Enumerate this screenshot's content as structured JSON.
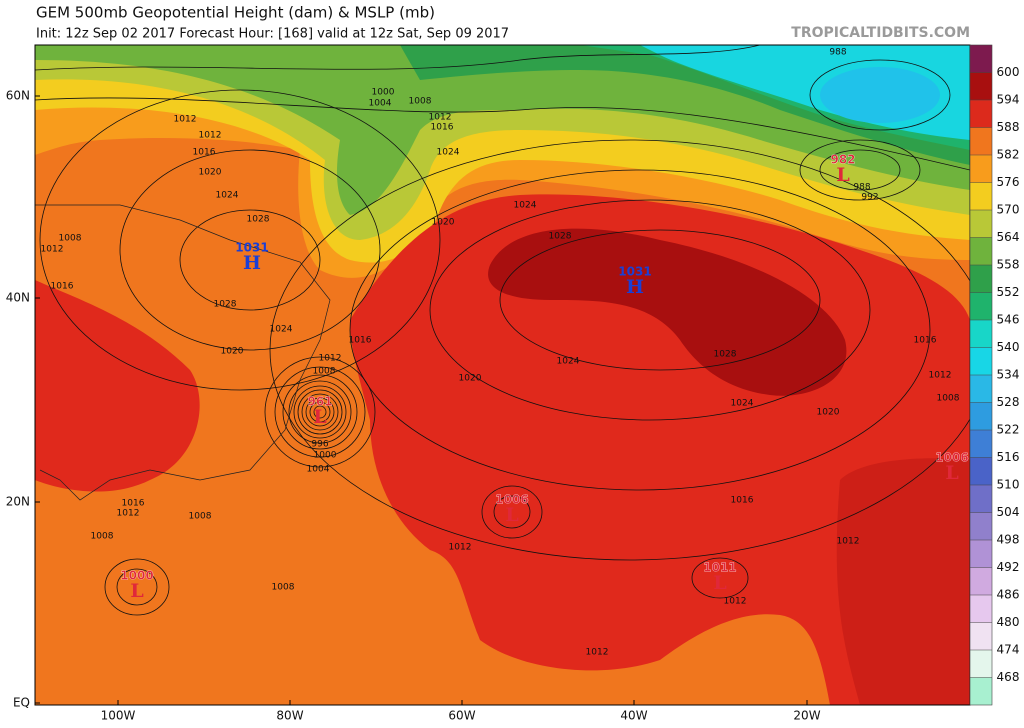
{
  "header": {
    "title": "GEM 500mb Geopotential Height (dam) & MSLP (mb)",
    "subtitle": "Init: 12z Sep 02 2017   Forecast Hour: [168]   valid at 12z Sat, Sep 09 2017",
    "brand": "TROPICALTIDBITS.COM"
  },
  "map": {
    "lat_labels": [
      "60N",
      "40N",
      "20N",
      "EQ"
    ],
    "lon_labels": [
      "100W",
      "80W",
      "60W",
      "40W",
      "20W"
    ],
    "centers": [
      {
        "letter": "H",
        "value": 1031
      },
      {
        "letter": "H",
        "value": 1031
      },
      {
        "letter": "L",
        "value": 982
      },
      {
        "letter": "L",
        "value": 961
      },
      {
        "letter": "L",
        "value": 1006
      },
      {
        "letter": "L",
        "value": 1011
      },
      {
        "letter": "L",
        "value": 1000
      },
      {
        "letter": "L",
        "value": 1006
      }
    ],
    "isobar_labels": [
      988,
      1000,
      1004,
      1008,
      1012,
      1016,
      1012,
      1012,
      1016,
      1020,
      1024,
      1028,
      1008,
      1012,
      1016,
      1028,
      1024,
      1020,
      1012,
      1008,
      1016,
      1024,
      1020,
      1024,
      1028,
      1024,
      1020,
      1028,
      1024,
      1020,
      1016,
      1016,
      1012,
      1008,
      996,
      1000,
      1004,
      1016,
      1012,
      1008,
      1008,
      1012,
      1008,
      1012,
      1012,
      988,
      992,
      1012
    ]
  },
  "colorbar": {
    "ticks": [
      600,
      594,
      588,
      582,
      576,
      570,
      564,
      558,
      552,
      546,
      540,
      534,
      528,
      522,
      516,
      510,
      504,
      498,
      492,
      486,
      480,
      474,
      468
    ],
    "colors": [
      "#7d1a4e",
      "#a80f0f",
      "#dc2a1c",
      "#f0761e",
      "#f89c1c",
      "#f3cd1f",
      "#b9c837",
      "#6fb33d",
      "#2fa04a",
      "#1fb36c",
      "#18d6c8",
      "#18d6e6",
      "#2ab8e6",
      "#2e9ce0",
      "#3e7fd6",
      "#4a63c8",
      "#6f6fc8",
      "#9080cc",
      "#b092d6",
      "#d0aae0",
      "#e6c8ee",
      "#f0e2f2",
      "#e4f6ec",
      "#a8f0d0"
    ]
  }
}
